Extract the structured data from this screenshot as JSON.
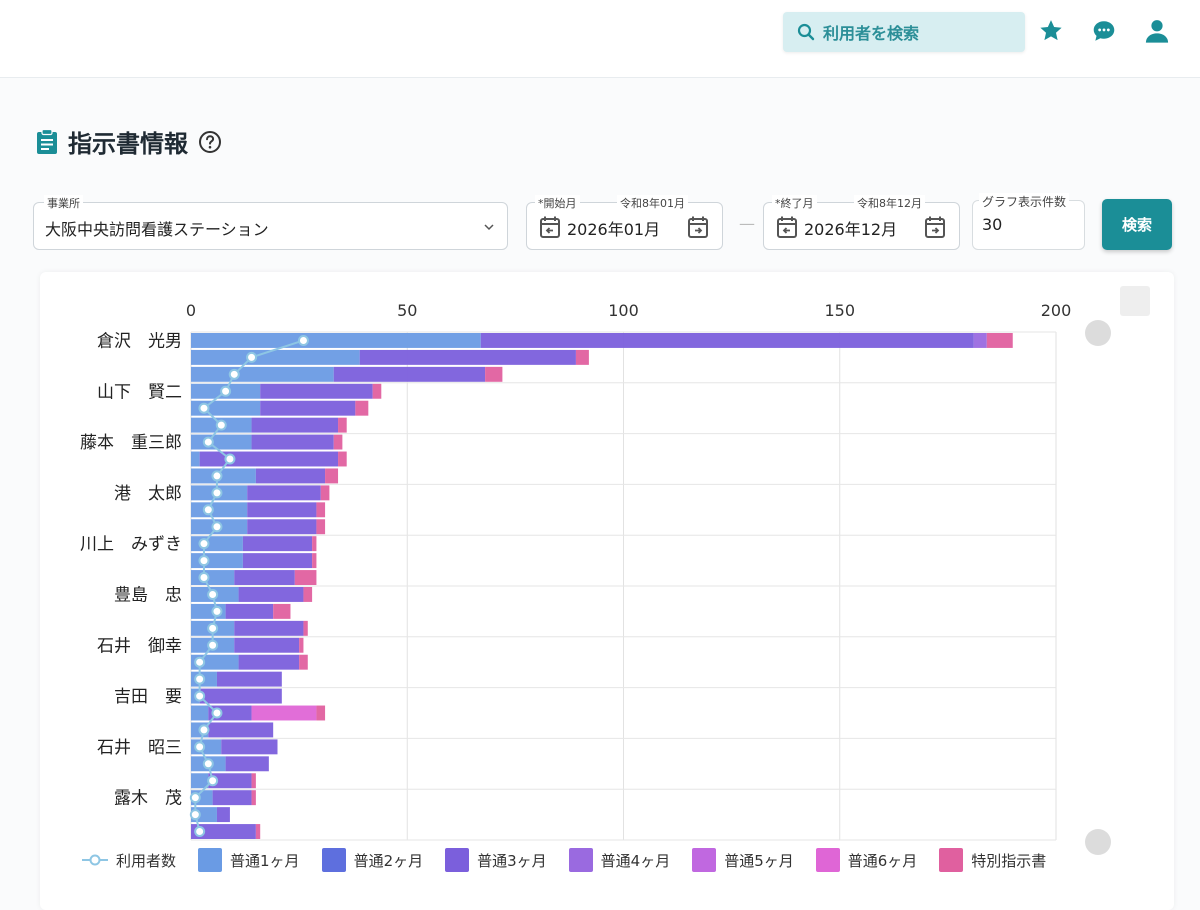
{
  "header": {
    "search_placeholder": "利用者を検索",
    "icons": [
      "star-icon",
      "chat-icon",
      "user-icon"
    ]
  },
  "page": {
    "title": "指示書情報",
    "help_icon": "help-circle-icon"
  },
  "filters": {
    "office_label": "事業所",
    "office_value": "大阪中央訪問看護ステーション",
    "start_label": "*開始月",
    "start_era": "令和8年01月",
    "start_value": "2026年01月",
    "end_label": "*終了月",
    "end_era": "令和8年12月",
    "end_value": "2026年12月",
    "count_label": "グラフ表示件数",
    "count_value": "30",
    "search_button": "検索",
    "dash": "—"
  },
  "colors": {
    "accent": "#1b8e97",
    "line": "#8ec6e4"
  },
  "chart_data": {
    "type": "bar",
    "orientation": "horizontal-stacked",
    "xlim": [
      0,
      200
    ],
    "x_ticks": [
      "0",
      "50",
      "100",
      "150",
      "200"
    ],
    "grid": true,
    "legend_position": "bottom",
    "row_labels": [
      "倉沢　光男",
      "",
      "",
      "山下　賢二",
      "",
      "",
      "藤本　重三郎",
      "",
      "",
      "港　太郎",
      "",
      "",
      "川上　みずき",
      "",
      "",
      "豊島　忠",
      "",
      "",
      "石井　御幸",
      "",
      "",
      "吉田　要",
      "",
      "",
      "石井　昭三",
      "",
      "",
      "露木　茂",
      "",
      ""
    ],
    "series": [
      {
        "name": "利用者数",
        "color": "#8ec6e4",
        "kind": "line",
        "values": [
          26,
          14,
          10,
          8,
          3,
          7,
          4,
          9,
          6,
          6,
          4,
          6,
          3,
          3,
          3,
          5,
          6,
          5,
          5,
          2,
          2,
          2,
          6,
          3,
          2,
          4,
          5,
          1,
          1,
          2
        ]
      },
      {
        "name": "普通1ヶ月",
        "color": "#6a9be4",
        "values": [
          67,
          39,
          33,
          16,
          16,
          14,
          14,
          2,
          15,
          13,
          13,
          13,
          12,
          12,
          10,
          11,
          8,
          10,
          10,
          11,
          6,
          2,
          4,
          4,
          7,
          8,
          4,
          5,
          6,
          0
        ]
      },
      {
        "name": "普通2ヶ月",
        "color": "#5e6fde",
        "values": [
          0,
          0,
          0,
          0,
          0,
          0,
          0,
          0,
          0,
          0,
          0,
          0,
          0,
          0,
          0,
          0,
          0,
          0,
          0,
          0,
          0,
          0,
          0,
          0,
          0,
          0,
          0,
          0,
          0,
          0
        ]
      },
      {
        "name": "普通3ヶ月",
        "color": "#7b5fdc",
        "values": [
          114,
          50,
          35,
          26,
          22,
          20,
          19,
          32,
          16,
          17,
          16,
          16,
          16,
          16,
          14,
          15,
          11,
          16,
          15,
          14,
          15,
          19,
          10,
          15,
          13,
          10,
          10,
          9,
          3,
          15
        ]
      },
      {
        "name": "普通4ヶ月",
        "color": "#9a6ae0",
        "values": [
          3,
          0,
          0,
          0,
          0,
          0,
          0,
          0,
          0,
          0,
          0,
          0,
          0,
          0,
          0,
          0,
          0,
          0,
          0,
          0,
          0,
          0,
          0,
          0,
          0,
          0,
          0,
          0,
          0,
          0
        ]
      },
      {
        "name": "普通5ヶ月",
        "color": "#c068e0",
        "values": [
          0,
          0,
          0,
          0,
          0,
          0,
          0,
          0,
          0,
          0,
          0,
          0,
          0,
          0,
          0,
          0,
          0,
          0,
          0,
          0,
          0,
          0,
          0,
          0,
          0,
          0,
          0,
          0,
          0,
          0
        ]
      },
      {
        "name": "普通6ヶ月",
        "color": "#df66d6",
        "values": [
          0,
          0,
          0,
          0,
          0,
          0,
          0,
          0,
          0,
          0,
          0,
          0,
          0,
          0,
          0,
          0,
          0,
          0,
          0,
          0,
          0,
          0,
          0,
          0,
          0,
          0,
          0,
          0,
          0,
          0
        ]
      },
      {
        "name": "特別指示書",
        "color": "#e0609f",
        "values": [
          6,
          3,
          4,
          2,
          3,
          2,
          2,
          2,
          3,
          2,
          2,
          2,
          1,
          1,
          5,
          2,
          4,
          1,
          1,
          2,
          0,
          0,
          2,
          0,
          0,
          0,
          1,
          1,
          0,
          1
        ]
      }
    ],
    "extra_segments": {
      "普通6ヶ月": [
        0,
        0,
        0,
        0,
        0,
        0,
        0,
        0,
        0,
        0,
        0,
        0,
        0,
        0,
        0,
        0,
        0,
        0,
        0,
        0,
        0,
        0,
        15,
        0,
        0,
        0,
        0,
        0,
        0,
        0
      ]
    }
  }
}
